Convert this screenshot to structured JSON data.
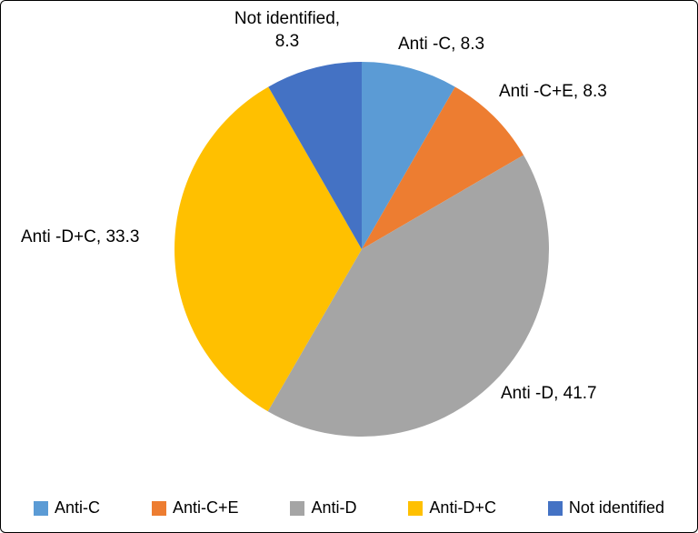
{
  "chart_data": {
    "type": "pie",
    "categories": [
      "Anti-C",
      "Anti-C+E",
      "Anti-D",
      "Anti-D+C",
      "Not identified"
    ],
    "values": [
      8.3,
      8.3,
      41.7,
      33.3,
      8.3
    ],
    "colors": [
      "#5B9BD5",
      "#ED7D31",
      "#A5A5A5",
      "#FFC000",
      "#4472C4"
    ],
    "slice_labels": [
      "Anti -C, 8.3",
      "Anti -C+E, 8.3",
      "Anti -D, 41.7",
      "Anti -D+C, 33.3",
      "Not identified,\n8.3"
    ],
    "title": "",
    "start_angle_deg": 0,
    "direction": "clockwise",
    "legend_position": "bottom"
  }
}
